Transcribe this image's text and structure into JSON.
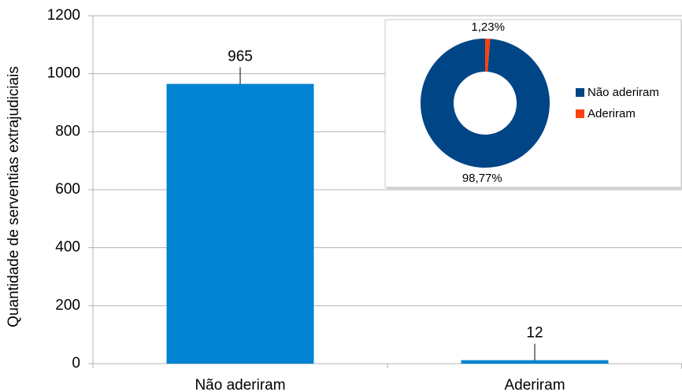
{
  "chart_data": [
    {
      "type": "bar",
      "ylabel": "Quantidade de serventias extrajudiciais",
      "categories": [
        "Não aderiram",
        "Aderiram"
      ],
      "values": [
        965,
        12
      ],
      "color": "#0084d1",
      "ylim": [
        0,
        1200
      ],
      "yticks": [
        0,
        200,
        400,
        600,
        800,
        1000,
        1200
      ],
      "grid": true
    },
    {
      "type": "pie",
      "donut": true,
      "categories": [
        "Não aderiram",
        "Aderiram"
      ],
      "values": [
        98.77,
        1.23
      ],
      "value_labels": [
        "98,77%",
        "1,23%"
      ],
      "colors": [
        "#004586",
        "#ff420e"
      ],
      "legend": "right"
    }
  ]
}
